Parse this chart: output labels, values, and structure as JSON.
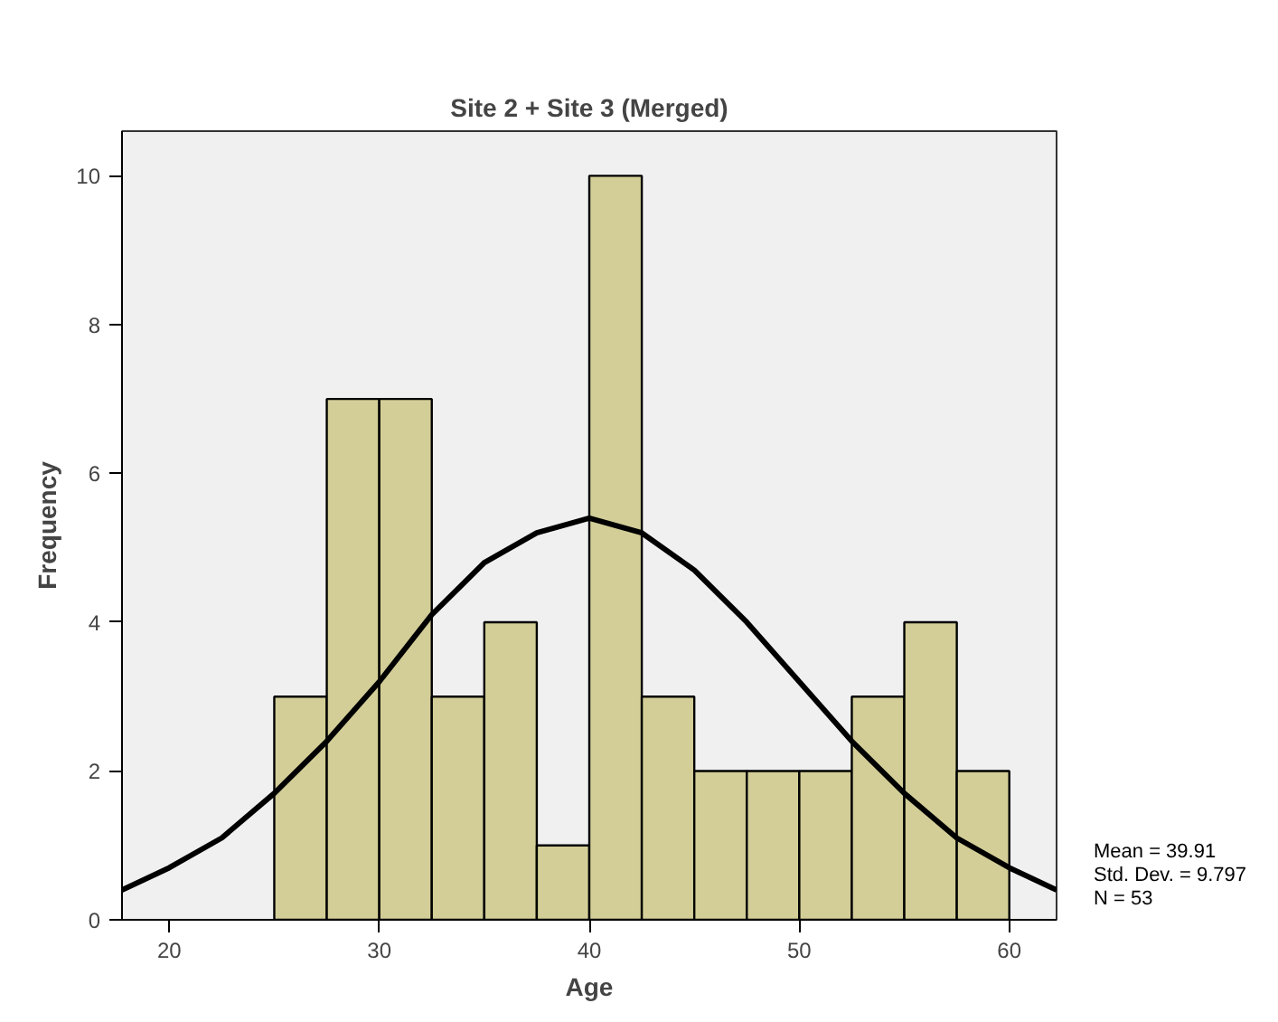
{
  "chart_data": {
    "type": "histogram",
    "title": "Site 2 + Site 3 (Merged)",
    "xlabel": "Age",
    "ylabel": "Frequency",
    "series": [
      {
        "color": "#d3ce97",
        "bins": [
          25,
          27.5,
          30,
          32.5,
          35,
          37.5,
          40,
          42.5,
          45,
          47.5,
          50,
          52.5,
          55,
          57.5,
          60
        ],
        "values": [
          3,
          7,
          7,
          3,
          4,
          1,
          10,
          3,
          2,
          2,
          2,
          3,
          4,
          2
        ]
      },
      {
        "type": "line",
        "color": "#000000",
        "x": [
          17.75,
          20,
          22.5,
          25,
          27.5,
          30,
          32.5,
          35,
          37.5,
          40,
          42.5,
          45,
          47.5,
          50,
          52.5,
          55,
          57.5,
          60,
          62.25
        ],
        "values": [
          0.4,
          0.7,
          1.1,
          1.7,
          2.4,
          3.2,
          4.1,
          4.8,
          5.2,
          5.4,
          5.2,
          4.7,
          4.0,
          3.2,
          2.4,
          1.7,
          1.1,
          0.7,
          0.4
        ]
      }
    ],
    "xlim": [
      17.75,
      62.25
    ],
    "ylim": [
      0,
      10.6
    ],
    "xticks": [
      20,
      30,
      40,
      50,
      60
    ],
    "yticks": [
      0,
      2,
      4,
      6,
      8,
      10
    ],
    "grid": false,
    "annotations": [
      "Mean = 39.91",
      "Std. Dev. = 9.797",
      "N = 53"
    ]
  }
}
